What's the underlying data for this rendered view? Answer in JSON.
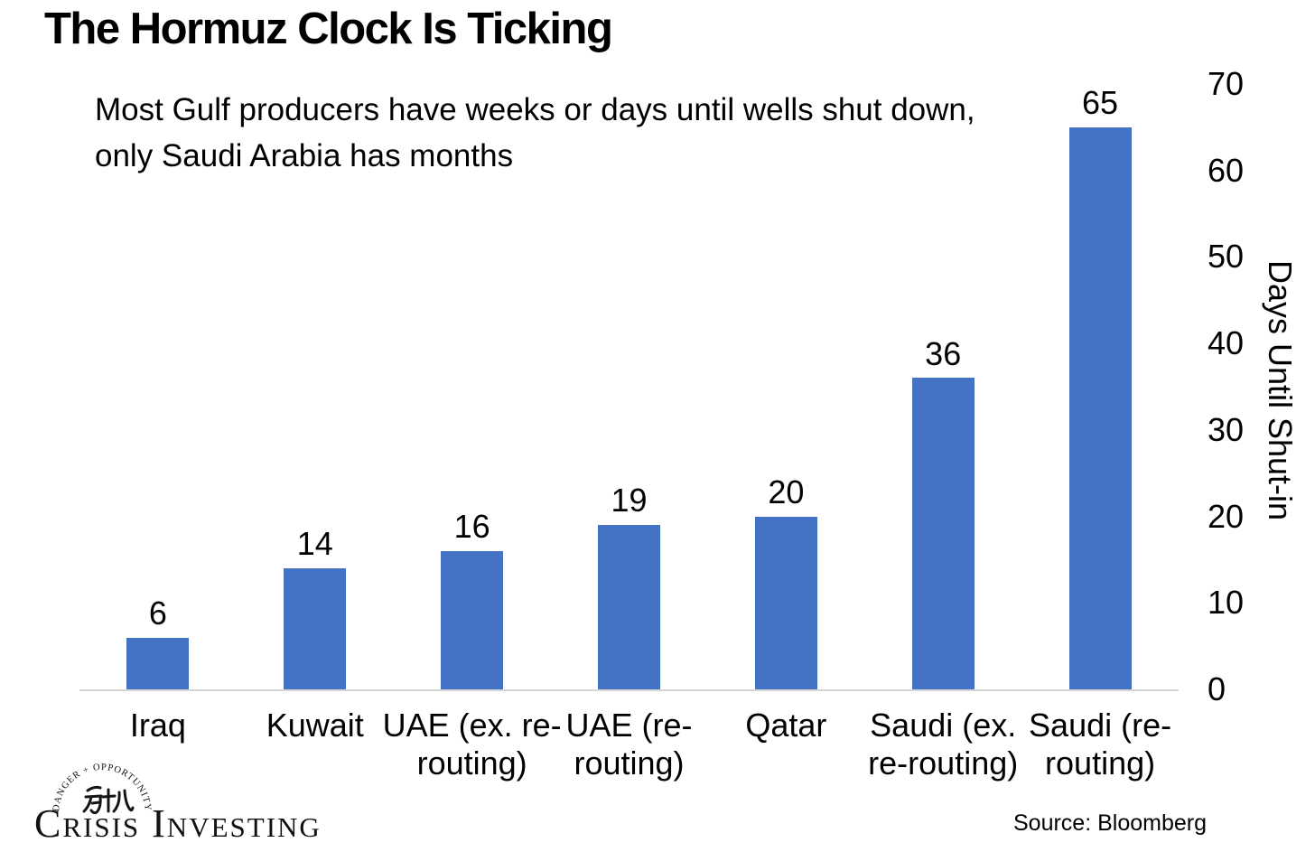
{
  "chart_data": {
    "type": "bar",
    "title": "The Hormuz Clock Is Ticking",
    "subtitle_lines": [
      "Most Gulf producers have weeks or days until wells shut down,",
      "only Saudi Arabia has months"
    ],
    "categories": [
      "Iraq",
      "Kuwait",
      "UAE (ex. re-routing)",
      "UAE (re-routing)",
      "Qatar",
      "Saudi (ex. re-routing)",
      "Saudi (re-routing)"
    ],
    "values": [
      6,
      14,
      16,
      19,
      20,
      36,
      65
    ],
    "xlabel": "",
    "ylabel": "Days Until Shut-in",
    "ylim": [
      0,
      70
    ],
    "yticks": [
      0,
      10,
      20,
      30,
      40,
      50,
      60,
      70
    ],
    "ytick_side": "right",
    "grid": false,
    "legend": false,
    "data_labels": true,
    "bar_color": "#4472C4",
    "axis_line_color": "#D6D6D6",
    "text_color": "#000000"
  },
  "footer": {
    "source": "Source: Bloomberg",
    "logo": {
      "text": "Crisis Investing",
      "arc_text": "DANGER + OPPORTUNITY",
      "characters": "危机"
    }
  }
}
